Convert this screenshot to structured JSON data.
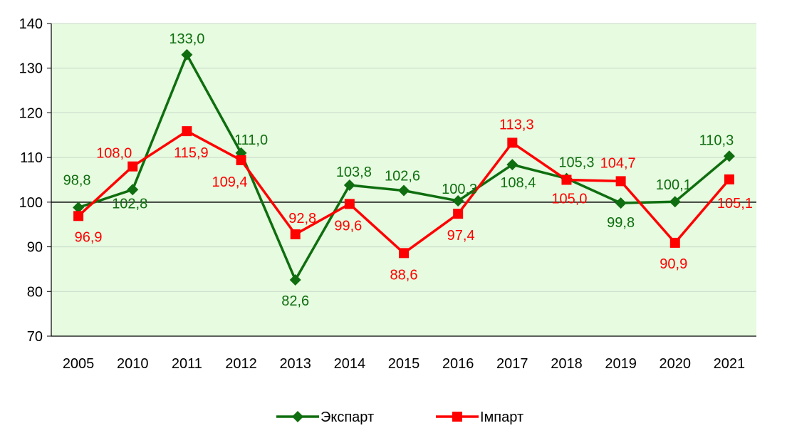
{
  "chart_data": {
    "type": "line",
    "categories": [
      "2005",
      "2010",
      "2011",
      "2012",
      "2013",
      "2014",
      "2015",
      "2016",
      "2017",
      "2018",
      "2019",
      "2020",
      "2021"
    ],
    "series": [
      {
        "name": "Экспарт",
        "color": "#0f6e0f",
        "marker": "diamond",
        "values": [
          98.8,
          102.8,
          133.0,
          111.0,
          82.6,
          103.8,
          102.6,
          100.3,
          108.4,
          105.3,
          99.8,
          100.1,
          110.3
        ],
        "labels": [
          "98,8",
          "102,8",
          "133,0",
          "111,0",
          "82,6",
          "103,8",
          "102,6",
          "100,3",
          "108,4",
          "105,3",
          "99,8",
          "100,1",
          "110,3"
        ]
      },
      {
        "name": "Імпарт",
        "color": "#ff0000",
        "marker": "square",
        "values": [
          96.9,
          108.0,
          115.9,
          109.4,
          92.8,
          99.6,
          88.6,
          97.4,
          113.3,
          105.0,
          104.7,
          90.9,
          105.1
        ],
        "labels": [
          "96,9",
          "108,0",
          "115,9",
          "109,4",
          "92,8",
          "99,6",
          "88,6",
          "97,4",
          "113,3",
          "105,0",
          "104,7",
          "90,9",
          "105,1"
        ]
      }
    ],
    "y_ticks": [
      "70",
      "80",
      "90",
      "100",
      "110",
      "120",
      "130",
      "140"
    ],
    "ylim": [
      70,
      140
    ],
    "reference_line": 100,
    "plot_background": "#e6fbe0",
    "grid": true,
    "legend_position": "bottom",
    "title": "",
    "xlabel": "",
    "ylabel": ""
  }
}
